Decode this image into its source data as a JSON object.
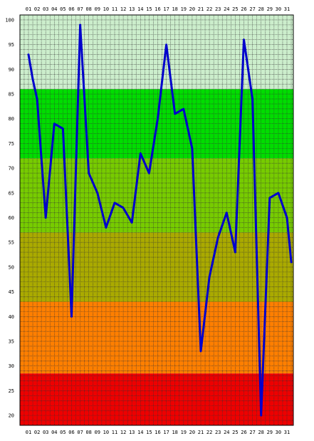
{
  "chart_data": {
    "type": "line",
    "title": "",
    "xlabel": "",
    "ylabel": "",
    "x": [
      "01",
      "02",
      "03",
      "04",
      "05",
      "06",
      "07",
      "08",
      "09",
      "10",
      "11",
      "12",
      "13",
      "14",
      "15",
      "16",
      "17",
      "18",
      "19",
      "20",
      "21",
      "22",
      "23",
      "24",
      "25",
      "26",
      "27",
      "28",
      "29",
      "30",
      "31"
    ],
    "y_ticks": [
      20,
      25,
      30,
      35,
      40,
      45,
      50,
      55,
      60,
      65,
      70,
      75,
      80,
      85,
      90,
      95,
      100
    ],
    "ylim": [
      18,
      101
    ],
    "grid": true,
    "legend": "none",
    "series": [
      {
        "color": "#0000cc",
        "x": [
          1,
          1.5,
          2,
          3,
          4,
          5,
          6,
          7,
          8,
          9,
          10,
          11,
          12,
          13,
          14,
          15,
          16,
          17,
          18,
          19,
          20,
          21,
          22,
          23,
          24,
          25,
          26,
          27,
          28,
          29,
          30,
          31,
          31.5
        ],
        "values": [
          93,
          88,
          84,
          60,
          79,
          78,
          40,
          99,
          69,
          65,
          58,
          63,
          62,
          59,
          73,
          69,
          80,
          95,
          81,
          82,
          74,
          33,
          48,
          56,
          61,
          53,
          96,
          84,
          20,
          64,
          65,
          60,
          51
        ]
      }
    ],
    "bands": [
      {
        "from": 18,
        "to": 28.5,
        "color": "#ee0000"
      },
      {
        "from": 28.5,
        "to": 43,
        "color": "#ff7f00"
      },
      {
        "from": 43,
        "to": 57,
        "color": "#aaaa00"
      },
      {
        "from": 57,
        "to": 72,
        "color": "#77cc00"
      },
      {
        "from": 72,
        "to": 86,
        "color": "#00dd00"
      },
      {
        "from": 86,
        "to": 101,
        "color": "#cceecc"
      }
    ],
    "gridline_color": "#333333"
  }
}
